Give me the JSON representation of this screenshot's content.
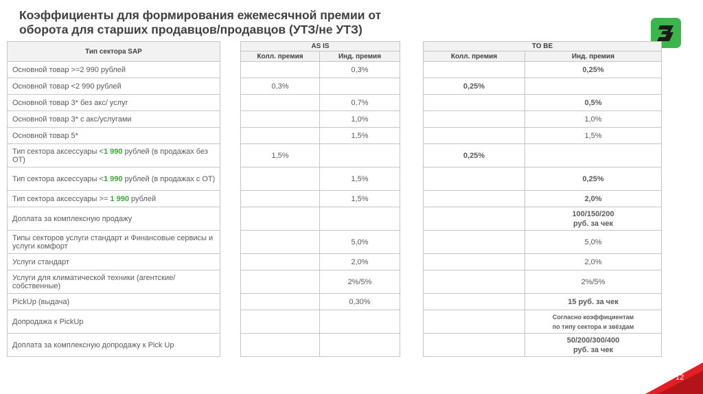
{
  "title": "Коэффициенты для формирования ежемесячной премии от оборота для старших продавцов/продавцов (УТЗ/не УТЗ)",
  "brand_color": "#3cb64a",
  "accent_green": "#39a935",
  "logo_icon": "logo-icon",
  "page_number": "12",
  "sector_header": "Тип сектора SAP",
  "as_is": {
    "header": "AS IS",
    "col1": "Колл. премия",
    "col2": "Инд. премия"
  },
  "to_be": {
    "header": "TO BE",
    "col1": "Колл. премия",
    "col2": "Инд. премия"
  },
  "rows": [
    {
      "label": [
        {
          "t": "Основной товар >=2 990 рублей"
        }
      ],
      "as_is": [
        "",
        "0,3%"
      ],
      "to_be": [
        {
          "t": ""
        },
        {
          "t": "0,25%",
          "g": true
        }
      ]
    },
    {
      "label": [
        {
          "t": "Основной товар <2 990 рублей"
        }
      ],
      "as_is": [
        "0,3%",
        ""
      ],
      "to_be": [
        {
          "t": "0,25%",
          "g": true
        },
        {
          "t": ""
        }
      ]
    },
    {
      "label": [
        {
          "t": "Основной товар 3* без акс/ услуг"
        }
      ],
      "as_is": [
        "",
        "0,7%"
      ],
      "to_be": [
        {
          "t": ""
        },
        {
          "t": "0,5%",
          "g": true
        }
      ]
    },
    {
      "label": [
        {
          "t": "Основной товар 3* с акс/услугами"
        }
      ],
      "as_is": [
        "",
        "1,0%"
      ],
      "to_be": [
        {
          "t": ""
        },
        {
          "t": "1,0%"
        }
      ]
    },
    {
      "label": [
        {
          "t": "Основной товар 5*"
        }
      ],
      "as_is": [
        "",
        "1,5%"
      ],
      "to_be": [
        {
          "t": ""
        },
        {
          "t": "1,5%"
        }
      ]
    },
    {
      "label": [
        {
          "t": "Тип сектора аксессуары <"
        },
        {
          "t": "1 990",
          "g": true
        },
        {
          "t": " рублей (в продажах без ОТ)"
        }
      ],
      "as_is": [
        "1,5%",
        ""
      ],
      "to_be": [
        {
          "t": "0,25%",
          "g": true
        },
        {
          "t": ""
        }
      ]
    },
    {
      "label": [
        {
          "t": "Тип сектора аксессуары <"
        },
        {
          "t": "1 990",
          "g": true
        },
        {
          "t": " рублей (в продажах с ОТ)"
        }
      ],
      "as_is": [
        "",
        "1,5%"
      ],
      "to_be": [
        {
          "t": ""
        },
        {
          "t": "0,25%",
          "g": true
        }
      ]
    },
    {
      "label": [
        {
          "t": "Тип сектора аксессуары >= "
        },
        {
          "t": "1 990",
          "g": true
        },
        {
          "t": " рублей"
        }
      ],
      "as_is": [
        "",
        "1,5%"
      ],
      "to_be": [
        {
          "t": ""
        },
        {
          "t": "2,0%",
          "g": true
        }
      ]
    },
    {
      "label": [
        {
          "t": "Доплата за комплексную продажу"
        }
      ],
      "as_is": [
        "",
        ""
      ],
      "to_be": [
        {
          "t": ""
        },
        {
          "t": "100/150/200\nруб. за чек",
          "g": true
        }
      ]
    },
    {
      "label": [
        {
          "t": "Типы секторов услуги стандарт и Финансовые сервисы и услуги комфорт"
        }
      ],
      "as_is": [
        "",
        "5,0%"
      ],
      "to_be": [
        {
          "t": ""
        },
        {
          "t": "5,0%"
        }
      ]
    },
    {
      "label": [
        {
          "t": "Услуги стандарт"
        }
      ],
      "as_is": [
        "",
        "2,0%"
      ],
      "to_be": [
        {
          "t": ""
        },
        {
          "t": "2,0%"
        }
      ]
    },
    {
      "label": [
        {
          "t": "Услуги для климатической техники (агентские/собственные)"
        }
      ],
      "as_is": [
        "",
        "2%/5%"
      ],
      "to_be": [
        {
          "t": ""
        },
        {
          "t": "2%/5%"
        }
      ]
    },
    {
      "label": [
        {
          "t": "PickUp (выдача)"
        }
      ],
      "as_is": [
        "",
        "0,30%"
      ],
      "to_be": [
        {
          "t": ""
        },
        {
          "t": "15 руб. за чек",
          "g": true
        }
      ]
    },
    {
      "label": [
        {
          "t": "Допродажа к PickUp"
        }
      ],
      "as_is": [
        "",
        ""
      ],
      "to_be": [
        {
          "t": ""
        },
        {
          "t": "Согласно коэффициентам\nпо типу сектора и звёздам",
          "g": true,
          "small": true
        }
      ]
    },
    {
      "label": [
        {
          "t": "Доплата за комплексную допродажу к Pick Up"
        }
      ],
      "as_is": [
        "",
        ""
      ],
      "to_be": [
        {
          "t": ""
        },
        {
          "t": "50/200/300/400\nруб. за чек",
          "g": true
        }
      ]
    }
  ]
}
